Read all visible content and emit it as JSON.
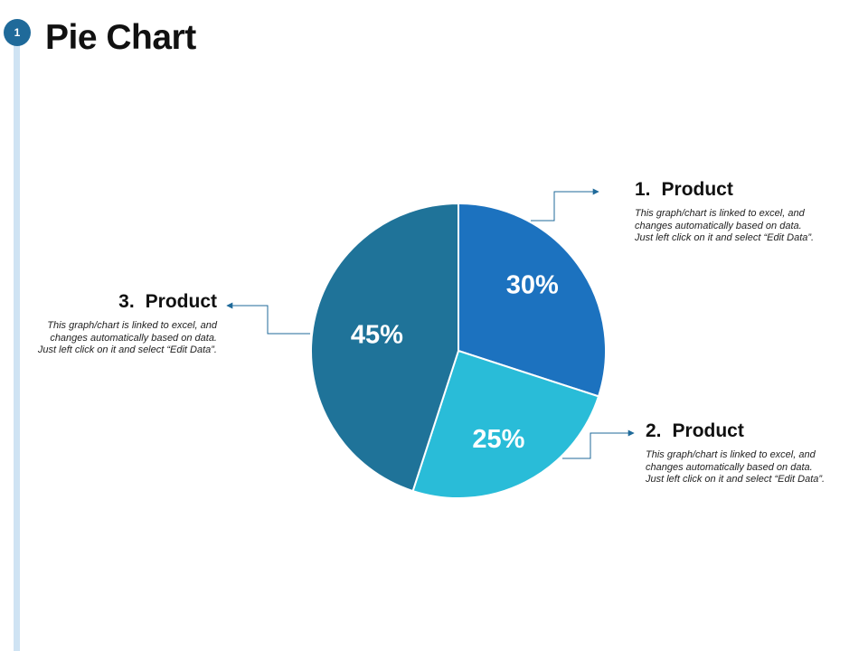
{
  "slide": {
    "number": "1",
    "title": "Pie Chart"
  },
  "colors": {
    "slice_1": "#1c72bf",
    "slice_2": "#29bcd8",
    "slice_3": "#1f7399",
    "accent_bar": "#cfe3f3",
    "badge": "#1f6a9a",
    "connector": "#1f6a9a"
  },
  "chart_data": {
    "type": "pie",
    "categories": [
      "Product",
      "Product",
      "Product"
    ],
    "values": [
      30,
      25,
      45
    ],
    "labels": [
      "30%",
      "25%",
      "45%"
    ],
    "start_angle_deg": 0,
    "direction": "clockwise"
  },
  "callouts": [
    {
      "number": "1.",
      "title": "Product",
      "description": "This graph/chart is linked to excel, and changes automatically based on data. Just left click on it and select “Edit Data”."
    },
    {
      "number": "2.",
      "title": "Product",
      "description": "This graph/chart is linked to excel, and changes automatically based on data. Just left click on it and select “Edit Data”."
    },
    {
      "number": "3.",
      "title": "Product",
      "description": "This graph/chart is linked to excel, and changes automatically based on data. Just left click on it and select “Edit Data”."
    }
  ]
}
